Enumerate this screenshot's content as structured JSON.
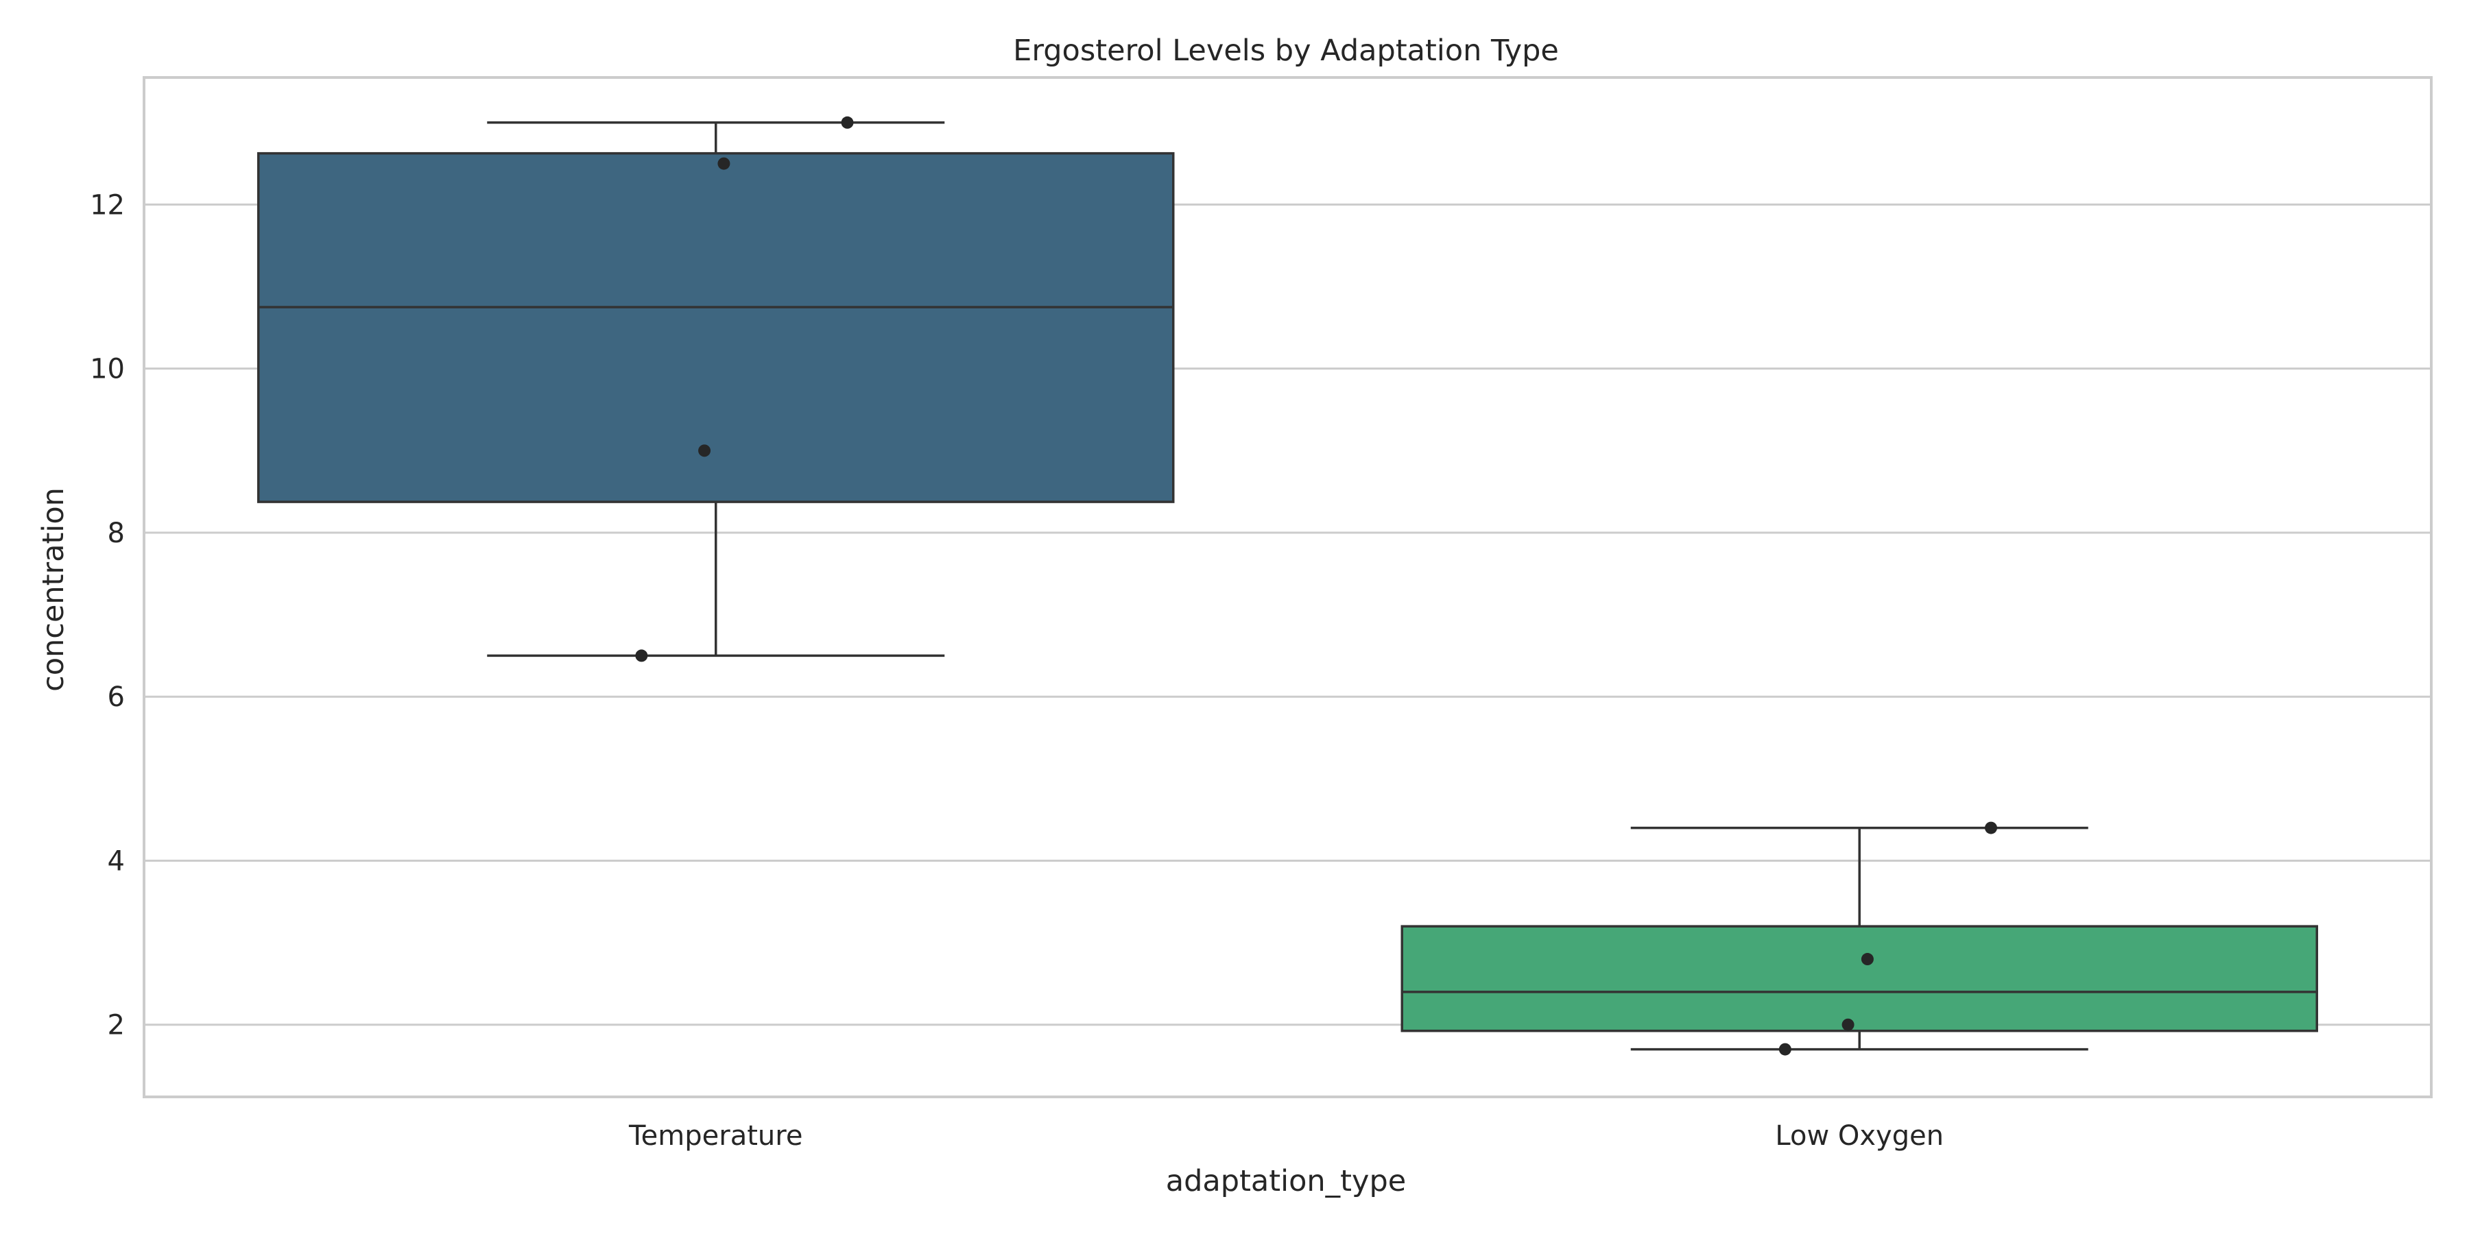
{
  "chart_data": {
    "type": "box",
    "title": "Ergosterol Levels by Adaptation Type",
    "xlabel": "adaptation_type",
    "ylabel": "concentration",
    "ylim": [
      1.12,
      13.55
    ],
    "yticks": [
      2,
      4,
      6,
      8,
      10,
      12
    ],
    "grid": "horizontal",
    "categories": [
      "Temperature",
      "Low Oxygen"
    ],
    "boxes": [
      {
        "category": "Temperature",
        "color": "#3e6680",
        "whisker_low": 6.5,
        "q1": 8.375,
        "median": 10.75,
        "q3": 12.625,
        "whisker_high": 13.0,
        "points": [
          6.5,
          9.0,
          12.5,
          13.0
        ]
      },
      {
        "category": "Low Oxygen",
        "color": "#46a777",
        "whisker_low": 1.7,
        "q1": 1.925,
        "median": 2.4,
        "q3": 3.2,
        "whisker_high": 4.4,
        "points": [
          1.7,
          2.0,
          2.8,
          4.4
        ]
      }
    ]
  }
}
